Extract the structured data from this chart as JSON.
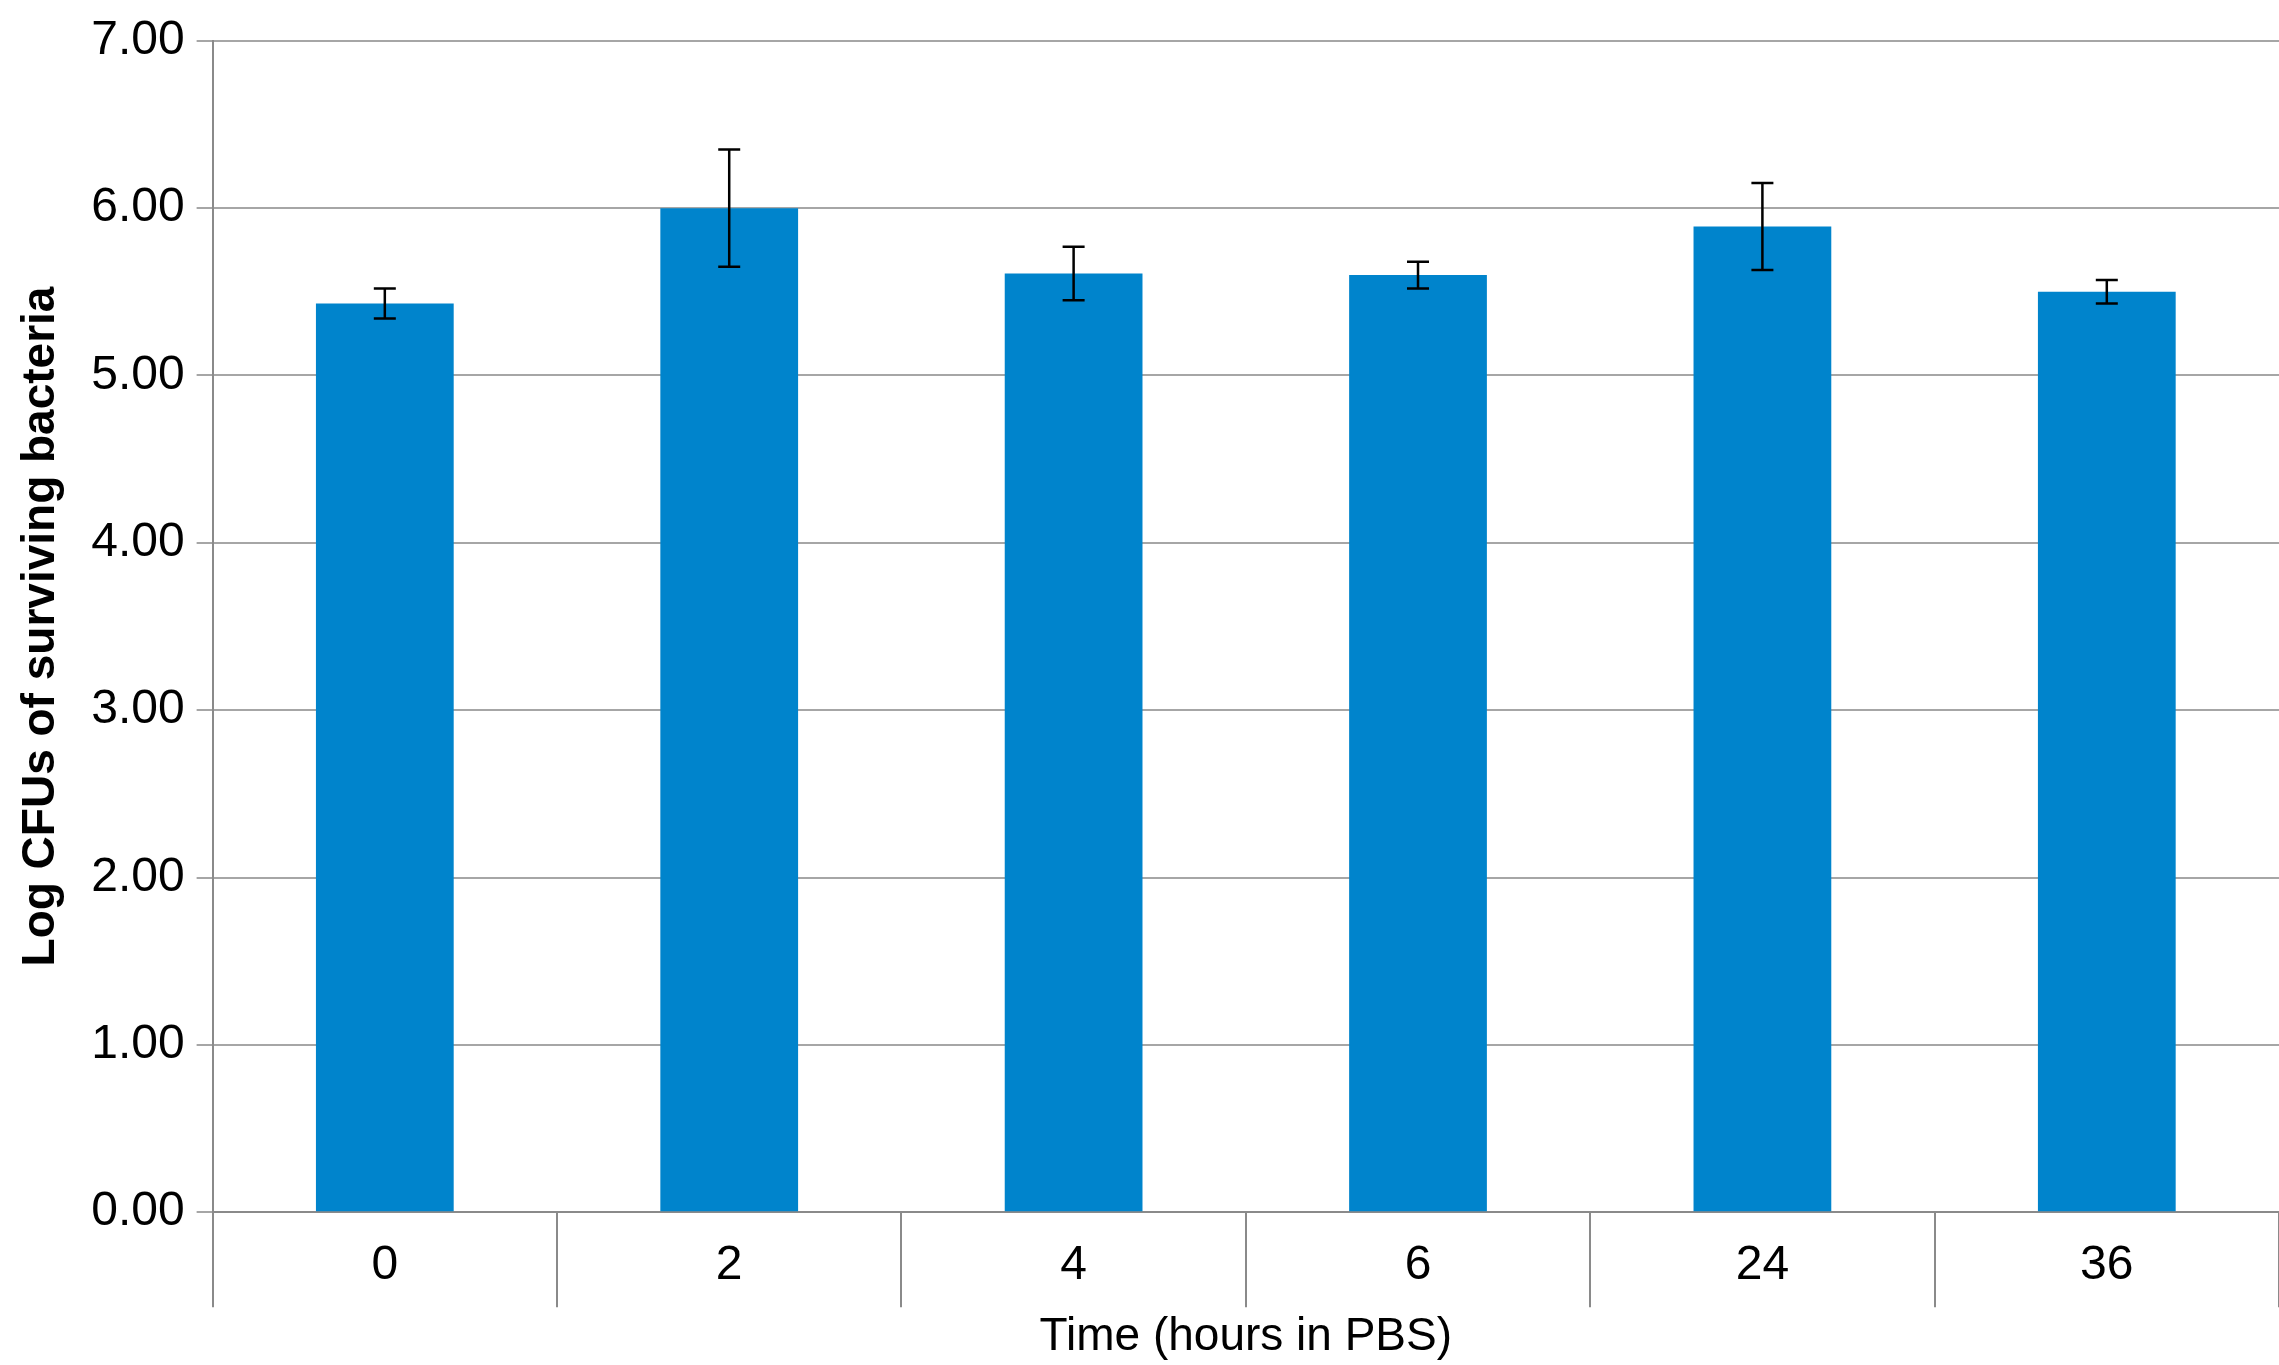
{
  "chart_data": {
    "type": "bar",
    "xlabel": "Time (hours in PBS)",
    "ylabel": "Log CFUs of surviving bacteria",
    "categories": [
      "0",
      "2",
      "4",
      "6",
      "24",
      "36"
    ],
    "values": [
      5.43,
      6.0,
      5.61,
      5.6,
      5.89,
      5.5
    ],
    "errors": [
      0.09,
      0.35,
      0.16,
      0.08,
      0.26,
      0.07
    ],
    "color": "#0084cc",
    "ylim": [
      0,
      7
    ],
    "yticks": [
      {
        "value": 0,
        "label": "0.00"
      },
      {
        "value": 1,
        "label": "1.00"
      },
      {
        "value": 2,
        "label": "2.00"
      },
      {
        "value": 3,
        "label": "3.00"
      },
      {
        "value": 4,
        "label": "4.00"
      },
      {
        "value": 5,
        "label": "5.00"
      },
      {
        "value": 6,
        "label": "6.00"
      },
      {
        "value": 7,
        "label": "7.00"
      }
    ],
    "grid": "y",
    "legend": false
  }
}
